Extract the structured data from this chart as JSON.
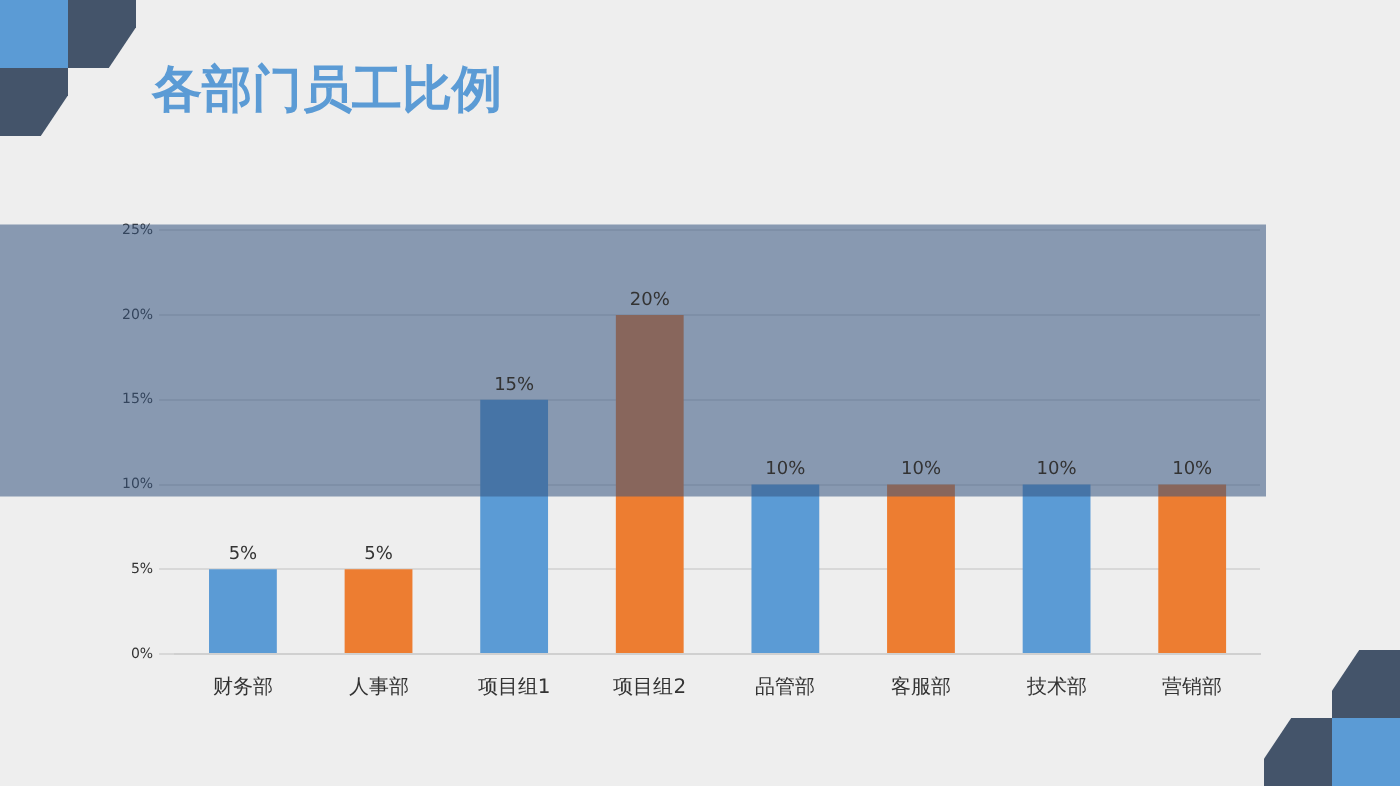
{
  "chart_data": {
    "type": "bar",
    "title": "各部门员工比例",
    "categories": [
      "财务部",
      "人事部",
      "项目组1",
      "项目组2",
      "品管部",
      "客服部",
      "技术部",
      "营销部"
    ],
    "values": [
      5,
      5,
      15,
      20,
      10,
      10,
      10,
      10
    ],
    "colors": [
      "#5b9bd5",
      "#ed7d31",
      "#5b9bd5",
      "#ed7d31",
      "#5b9bd5",
      "#ed7d31",
      "#5b9bd5",
      "#ed7d31"
    ],
    "value_labels": [
      "5%",
      "5%",
      "15%",
      "20%",
      "10%",
      "10%",
      "10%",
      "10%"
    ],
    "ylim": [
      0,
      25
    ],
    "yticks": [
      {
        "value": 0,
        "label": "0%"
      },
      {
        "value": 5,
        "label": "5%"
      },
      {
        "value": 10,
        "label": "10%"
      },
      {
        "value": 15,
        "label": "15%"
      },
      {
        "value": 20,
        "label": "20%"
      },
      {
        "value": 25,
        "label": "25%"
      }
    ],
    "bands": [
      {
        "axis": "y",
        "from": 9.3,
        "to": 25,
        "color": "#345480"
      }
    ],
    "grid": "y",
    "legend": false
  }
}
